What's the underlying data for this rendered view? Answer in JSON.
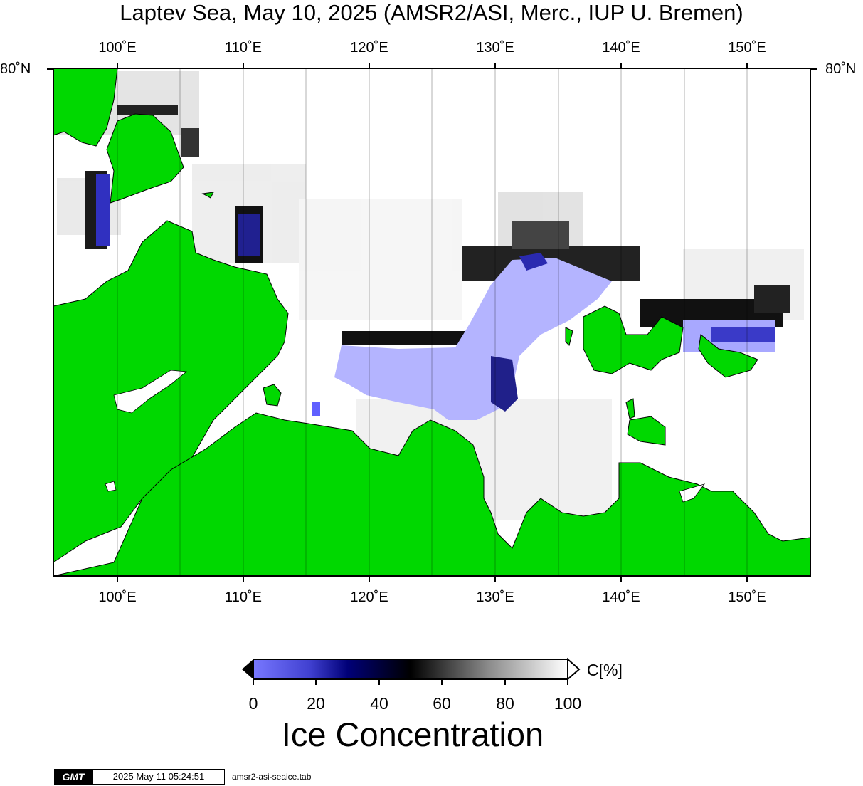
{
  "title": "Laptev Sea, May 10, 2025 (AMSR2/ASI, Merc., IUP U. Bremen)",
  "map": {
    "lon_ticks": [
      "100˚E",
      "110˚E",
      "120˚E",
      "130˚E",
      "140˚E",
      "150˚E"
    ],
    "lat_tick": "80˚N",
    "colors": {
      "land": "#00d800",
      "open_water_low": "#7878ff",
      "water_area": "#b4b4ff",
      "ice_full": "#ffffff",
      "frame": "#000000"
    }
  },
  "colorbar": {
    "ticks": [
      "0",
      "20",
      "40",
      "60",
      "80",
      "100"
    ],
    "unit": "C[%]",
    "title": "Ice Concentration"
  },
  "footer": {
    "logo": "GMT",
    "timestamp": "2025 May 11 05:24:51",
    "filename": "amsr2-asi-seaice.tab"
  }
}
